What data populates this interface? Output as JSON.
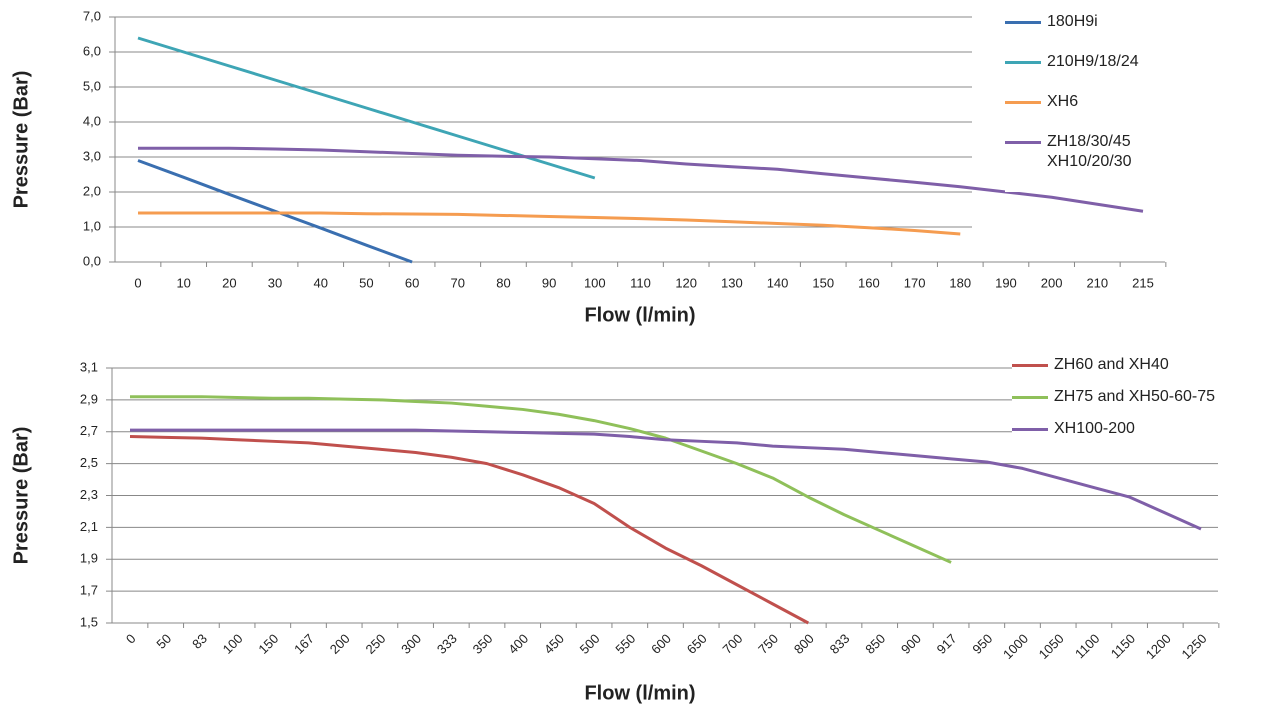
{
  "chart_data": [
    {
      "type": "line",
      "xlabel": "Flow (l/min)",
      "ylabel": "Pressure (Bar)",
      "categories": [
        "0",
        "10",
        "20",
        "30",
        "40",
        "50",
        "60",
        "70",
        "80",
        "90",
        "100",
        "110",
        "120",
        "130",
        "140",
        "150",
        "160",
        "170",
        "180",
        "190",
        "200",
        "210",
        "215"
      ],
      "ylim": [
        0,
        7
      ],
      "yticks": [
        {
          "value": 0,
          "label": "0,0"
        },
        {
          "value": 1,
          "label": "1,0"
        },
        {
          "value": 2,
          "label": "2,0"
        },
        {
          "value": 3,
          "label": "3,0"
        },
        {
          "value": 4,
          "label": "4,0"
        },
        {
          "value": 5,
          "label": "5,0"
        },
        {
          "value": 6,
          "label": "6,0"
        },
        {
          "value": 7,
          "label": "7,0"
        }
      ],
      "grid": true,
      "series": [
        {
          "name": "180H9i",
          "color": "#3a6fb0",
          "values": [
            2.9,
            2.42,
            1.93,
            1.45,
            0.97,
            0.48,
            0,
            null,
            null,
            null,
            null,
            null,
            null,
            null,
            null,
            null,
            null,
            null,
            null,
            null,
            null,
            null,
            null
          ]
        },
        {
          "name": "210H9/18/24",
          "color": "#3ea5b5",
          "values": [
            6.4,
            6.0,
            5.6,
            5.2,
            4.8,
            4.4,
            4.0,
            3.6,
            3.2,
            2.8,
            2.4,
            null,
            null,
            null,
            null,
            null,
            null,
            null,
            null,
            null,
            null,
            null,
            null
          ]
        },
        {
          "name": "XH6",
          "color": "#f59c50",
          "values": [
            1.4,
            1.4,
            1.4,
            1.4,
            1.4,
            1.38,
            1.37,
            1.36,
            1.33,
            1.3,
            1.27,
            1.24,
            1.2,
            1.15,
            1.1,
            1.05,
            0.98,
            0.9,
            0.8,
            null,
            null,
            null,
            null
          ]
        },
        {
          "name": "ZH18/30/45\nXH10/20/30",
          "color": "#7f5fa8",
          "values": [
            3.25,
            3.25,
            3.25,
            3.23,
            3.2,
            3.15,
            3.1,
            3.05,
            3.02,
            3.0,
            2.95,
            2.9,
            2.8,
            2.72,
            2.65,
            2.52,
            2.4,
            2.28,
            2.15,
            2.0,
            1.85,
            1.65,
            1.45
          ]
        }
      ]
    },
    {
      "type": "line",
      "xlabel": "Flow (l/min)",
      "ylabel": "Pressure (Bar)",
      "categories": [
        "0",
        "50",
        "83",
        "100",
        "150",
        "167",
        "200",
        "250",
        "300",
        "333",
        "350",
        "400",
        "450",
        "500",
        "550",
        "600",
        "650",
        "700",
        "750",
        "800",
        "833",
        "850",
        "900",
        "917",
        "950",
        "1000",
        "1050",
        "1100",
        "1150",
        "1200",
        "1250"
      ],
      "ylim": [
        1.5,
        3.1
      ],
      "yticks": [
        {
          "value": 1.5,
          "label": "1,5"
        },
        {
          "value": 1.7,
          "label": "1,7"
        },
        {
          "value": 1.9,
          "label": "1,9"
        },
        {
          "value": 2.1,
          "label": "2,1"
        },
        {
          "value": 2.3,
          "label": "2,3"
        },
        {
          "value": 2.5,
          "label": "2,5"
        },
        {
          "value": 2.7,
          "label": "2,7"
        },
        {
          "value": 2.9,
          "label": "2,9"
        },
        {
          "value": 3.1,
          "label": "3,1"
        }
      ],
      "grid": true,
      "series": [
        {
          "name": "ZH60 and XH40",
          "color": "#c0504d",
          "values": [
            2.67,
            2.665,
            2.66,
            2.65,
            2.64,
            2.63,
            2.61,
            2.59,
            2.57,
            2.54,
            2.5,
            2.43,
            2.35,
            2.25,
            2.1,
            1.97,
            1.86,
            1.74,
            1.62,
            1.5,
            null,
            null,
            null,
            null,
            null,
            null,
            null,
            null,
            null,
            null,
            null
          ]
        },
        {
          "name": "ZH75 and XH50-60-75",
          "color": "#8fc05a",
          "values": [
            2.92,
            2.92,
            2.92,
            2.915,
            2.91,
            2.91,
            2.905,
            2.9,
            2.89,
            2.88,
            2.86,
            2.84,
            2.81,
            2.77,
            2.72,
            2.66,
            2.58,
            2.5,
            2.41,
            2.29,
            2.18,
            2.08,
            1.98,
            1.88,
            null,
            null,
            null,
            null,
            null,
            null,
            null
          ]
        },
        {
          "name": "XH100-200",
          "color": "#7f5fa8",
          "values": [
            2.71,
            2.71,
            2.71,
            2.71,
            2.71,
            2.71,
            2.71,
            2.71,
            2.71,
            2.705,
            2.7,
            2.695,
            2.69,
            2.685,
            2.67,
            2.65,
            2.64,
            2.63,
            2.61,
            2.6,
            2.59,
            2.57,
            2.55,
            2.53,
            2.51,
            2.47,
            2.41,
            2.35,
            2.29,
            2.19,
            2.09
          ]
        }
      ]
    }
  ]
}
